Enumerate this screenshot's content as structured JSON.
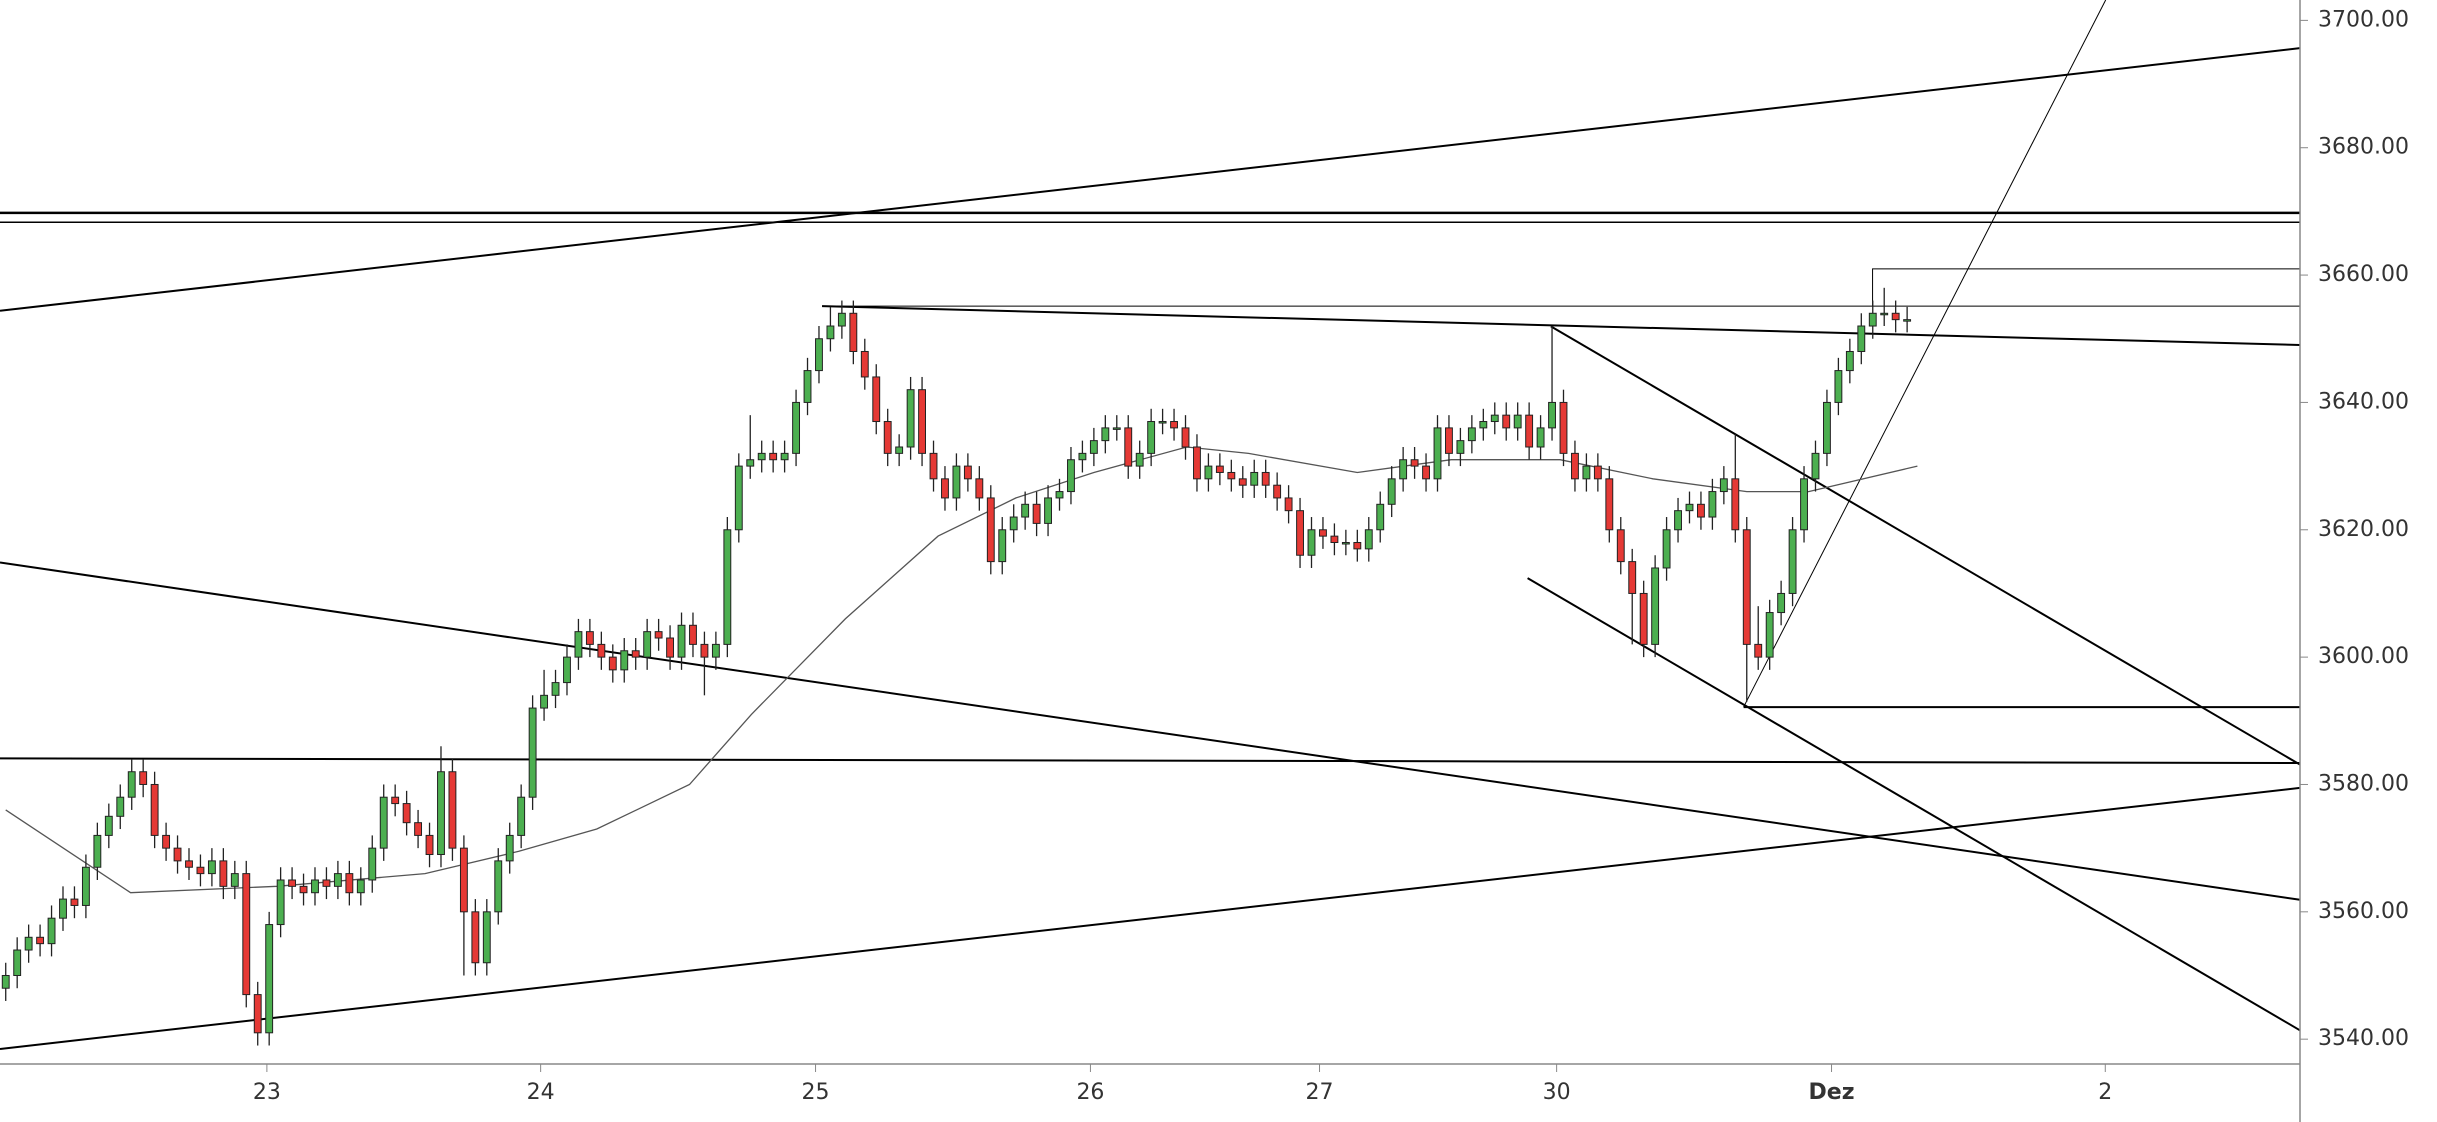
{
  "chart_data": {
    "type": "candlestick",
    "up_color": "#4caf50",
    "down_color": "#e53935",
    "outline_color": "#222222",
    "xlim": [
      -0.5,
      200.3
    ],
    "xticks": [
      {
        "value": 22.8,
        "label": "23"
      },
      {
        "value": 46.7,
        "label": "24"
      },
      {
        "value": 70.7,
        "label": "25"
      },
      {
        "value": 94.7,
        "label": "26"
      },
      {
        "value": 114.7,
        "label": "27"
      },
      {
        "value": 135.4,
        "label": "30"
      },
      {
        "value": 159.4,
        "label": "Dez"
      },
      {
        "value": 183.3,
        "label": "2"
      }
    ],
    "ylim": [
      3536.1,
      3703.2
    ],
    "yticks": [
      {
        "value": 3540,
        "label": "3540.00"
      },
      {
        "value": 3560,
        "label": "3560.00"
      },
      {
        "value": 3580,
        "label": "3580.00"
      },
      {
        "value": 3600,
        "label": "3600.00"
      },
      {
        "value": 3620,
        "label": "3620.00"
      },
      {
        "value": 3640,
        "label": "3640.00"
      },
      {
        "value": 3660,
        "label": "3660.00"
      },
      {
        "value": 3680,
        "label": "3680.00"
      },
      {
        "value": 3700,
        "label": "3700.00"
      }
    ],
    "ohlc": [
      [
        3548,
        3552,
        3546,
        3550
      ],
      [
        3550,
        3556,
        3548,
        3554
      ],
      [
        3554,
        3558,
        3552,
        3556
      ],
      [
        3556,
        3558,
        3553,
        3555
      ],
      [
        3555,
        3561,
        3553,
        3559
      ],
      [
        3559,
        3564,
        3557,
        3562
      ],
      [
        3562,
        3564,
        3559,
        3561
      ],
      [
        3561,
        3569,
        3559,
        3567
      ],
      [
        3567,
        3574,
        3565,
        3572
      ],
      [
        3572,
        3577,
        3570,
        3575
      ],
      [
        3575,
        3580,
        3573,
        3578
      ],
      [
        3578,
        3584,
        3576,
        3582
      ],
      [
        3582,
        3584,
        3578,
        3580
      ],
      [
        3580,
        3582,
        3570,
        3572
      ],
      [
        3572,
        3574,
        3568,
        3570
      ],
      [
        3570,
        3572,
        3566,
        3568
      ],
      [
        3568,
        3570,
        3565,
        3567
      ],
      [
        3567,
        3569,
        3564,
        3566
      ],
      [
        3566,
        3570,
        3564,
        3568
      ],
      [
        3568,
        3570,
        3562,
        3564
      ],
      [
        3564,
        3568,
        3562,
        3566
      ],
      [
        3566,
        3568,
        3545,
        3547
      ],
      [
        3547,
        3549,
        3539,
        3541
      ],
      [
        3541,
        3560,
        3539,
        3558
      ],
      [
        3558,
        3567,
        3556,
        3565
      ],
      [
        3565,
        3567,
        3562,
        3564
      ],
      [
        3564,
        3566,
        3561,
        3563
      ],
      [
        3563,
        3567,
        3561,
        3565
      ],
      [
        3565,
        3567,
        3562,
        3564
      ],
      [
        3564,
        3568,
        3562,
        3566
      ],
      [
        3566,
        3568,
        3561,
        3563
      ],
      [
        3563,
        3567,
        3561,
        3565
      ],
      [
        3565,
        3572,
        3563,
        3570
      ],
      [
        3570,
        3580,
        3568,
        3578
      ],
      [
        3578,
        3580,
        3575,
        3577
      ],
      [
        3577,
        3579,
        3572,
        3574
      ],
      [
        3574,
        3576,
        3570,
        3572
      ],
      [
        3572,
        3574,
        3567,
        3569
      ],
      [
        3569,
        3586,
        3567,
        3582
      ],
      [
        3582,
        3584,
        3568,
        3570
      ],
      [
        3570,
        3572,
        3550,
        3560
      ],
      [
        3560,
        3562,
        3550,
        3552
      ],
      [
        3552,
        3562,
        3550,
        3560
      ],
      [
        3560,
        3570,
        3558,
        3568
      ],
      [
        3568,
        3574,
        3566,
        3572
      ],
      [
        3572,
        3580,
        3570,
        3578
      ],
      [
        3578,
        3594,
        3576,
        3592
      ],
      [
        3592,
        3598,
        3590,
        3594
      ],
      [
        3594,
        3598,
        3592,
        3596
      ],
      [
        3596,
        3602,
        3594,
        3600
      ],
      [
        3600,
        3606,
        3598,
        3604
      ],
      [
        3604,
        3606,
        3600,
        3602
      ],
      [
        3602,
        3604,
        3598,
        3600
      ],
      [
        3600,
        3602,
        3596,
        3598
      ],
      [
        3598,
        3603,
        3596,
        3601
      ],
      [
        3601,
        3603,
        3598,
        3600
      ],
      [
        3600,
        3606,
        3598,
        3604
      ],
      [
        3604,
        3606,
        3601,
        3603
      ],
      [
        3603,
        3605,
        3598,
        3600
      ],
      [
        3600,
        3607,
        3598,
        3605
      ],
      [
        3605,
        3607,
        3600,
        3602
      ],
      [
        3602,
        3604,
        3594,
        3600
      ],
      [
        3600,
        3604,
        3598,
        3602
      ],
      [
        3602,
        3622,
        3600,
        3620
      ],
      [
        3620,
        3632,
        3618,
        3630
      ],
      [
        3630,
        3638,
        3628,
        3631
      ],
      [
        3631,
        3634,
        3629,
        3632
      ],
      [
        3632,
        3634,
        3629,
        3631
      ],
      [
        3631,
        3634,
        3629,
        3632
      ],
      [
        3632,
        3642,
        3630,
        3640
      ],
      [
        3640,
        3647,
        3638,
        3645
      ],
      [
        3645,
        3652,
        3643,
        3650
      ],
      [
        3650,
        3655,
        3648,
        3652
      ],
      [
        3652,
        3656,
        3650,
        3654
      ],
      [
        3654,
        3656,
        3646,
        3648
      ],
      [
        3648,
        3650,
        3642,
        3644
      ],
      [
        3644,
        3646,
        3635,
        3637
      ],
      [
        3637,
        3639,
        3630,
        3632
      ],
      [
        3632,
        3635,
        3630,
        3633
      ],
      [
        3633,
        3644,
        3631,
        3642
      ],
      [
        3642,
        3644,
        3630,
        3632
      ],
      [
        3632,
        3634,
        3626,
        3628
      ],
      [
        3628,
        3630,
        3623,
        3625
      ],
      [
        3625,
        3632,
        3623,
        3630
      ],
      [
        3630,
        3632,
        3626,
        3628
      ],
      [
        3628,
        3630,
        3623,
        3625
      ],
      [
        3625,
        3627,
        3613,
        3615
      ],
      [
        3615,
        3622,
        3613,
        3620
      ],
      [
        3620,
        3624,
        3618,
        3622
      ],
      [
        3622,
        3626,
        3620,
        3624
      ],
      [
        3624,
        3626,
        3619,
        3621
      ],
      [
        3621,
        3627,
        3619,
        3625
      ],
      [
        3625,
        3628,
        3623,
        3626
      ],
      [
        3626,
        3633,
        3624,
        3631
      ],
      [
        3631,
        3634,
        3629,
        3632
      ],
      [
        3632,
        3636,
        3630,
        3634
      ],
      [
        3634,
        3638,
        3632,
        3636
      ],
      [
        3636,
        3638,
        3634,
        3636
      ],
      [
        3636,
        3638,
        3628,
        3630
      ],
      [
        3630,
        3634,
        3628,
        3632
      ],
      [
        3632,
        3639,
        3630,
        3637
      ],
      [
        3637,
        3639,
        3635,
        3637
      ],
      [
        3637,
        3639,
        3634,
        3636
      ],
      [
        3636,
        3638,
        3631,
        3633
      ],
      [
        3633,
        3635,
        3626,
        3628
      ],
      [
        3628,
        3632,
        3626,
        3630
      ],
      [
        3630,
        3632,
        3627,
        3629
      ],
      [
        3629,
        3631,
        3626,
        3628
      ],
      [
        3628,
        3630,
        3625,
        3627
      ],
      [
        3627,
        3631,
        3625,
        3629
      ],
      [
        3629,
        3631,
        3625,
        3627
      ],
      [
        3627,
        3629,
        3623,
        3625
      ],
      [
        3625,
        3627,
        3621,
        3623
      ],
      [
        3623,
        3625,
        3614,
        3616
      ],
      [
        3616,
        3622,
        3614,
        3620
      ],
      [
        3620,
        3622,
        3617,
        3619
      ],
      [
        3619,
        3621,
        3616,
        3618
      ],
      [
        3618,
        3620,
        3616,
        3618
      ],
      [
        3618,
        3620,
        3615,
        3617
      ],
      [
        3617,
        3622,
        3615,
        3620
      ],
      [
        3620,
        3626,
        3618,
        3624
      ],
      [
        3624,
        3630,
        3622,
        3628
      ],
      [
        3628,
        3633,
        3626,
        3631
      ],
      [
        3631,
        3633,
        3628,
        3630
      ],
      [
        3630,
        3632,
        3626,
        3628
      ],
      [
        3628,
        3638,
        3626,
        3636
      ],
      [
        3636,
        3638,
        3630,
        3632
      ],
      [
        3632,
        3636,
        3630,
        3634
      ],
      [
        3634,
        3638,
        3632,
        3636
      ],
      [
        3636,
        3639,
        3634,
        3637
      ],
      [
        3637,
        3640,
        3635,
        3638
      ],
      [
        3638,
        3640,
        3634,
        3636
      ],
      [
        3636,
        3640,
        3634,
        3638
      ],
      [
        3638,
        3640,
        3631,
        3633
      ],
      [
        3633,
        3638,
        3631,
        3636
      ],
      [
        3636,
        3652,
        3634,
        3640
      ],
      [
        3640,
        3642,
        3630,
        3632
      ],
      [
        3632,
        3634,
        3626,
        3628
      ],
      [
        3628,
        3632,
        3626,
        3630
      ],
      [
        3630,
        3632,
        3626,
        3628
      ],
      [
        3628,
        3630,
        3618,
        3620
      ],
      [
        3620,
        3622,
        3613,
        3615
      ],
      [
        3615,
        3617,
        3602,
        3610
      ],
      [
        3610,
        3612,
        3600,
        3602
      ],
      [
        3602,
        3616,
        3600,
        3614
      ],
      [
        3614,
        3622,
        3612,
        3620
      ],
      [
        3620,
        3625,
        3618,
        3623
      ],
      [
        3623,
        3626,
        3621,
        3624
      ],
      [
        3624,
        3626,
        3620,
        3622
      ],
      [
        3622,
        3628,
        3620,
        3626
      ],
      [
        3626,
        3630,
        3624,
        3628
      ],
      [
        3628,
        3635,
        3618,
        3620
      ],
      [
        3620,
        3622,
        3593,
        3602
      ],
      [
        3602,
        3608,
        3598,
        3600
      ],
      [
        3600,
        3609,
        3598,
        3607
      ],
      [
        3607,
        3612,
        3605,
        3610
      ],
      [
        3610,
        3622,
        3608,
        3620
      ],
      [
        3620,
        3630,
        3618,
        3628
      ],
      [
        3628,
        3634,
        3626,
        3632
      ],
      [
        3632,
        3642,
        3630,
        3640
      ],
      [
        3640,
        3647,
        3638,
        3645
      ],
      [
        3645,
        3650,
        3643,
        3648
      ],
      [
        3648,
        3654,
        3646,
        3652
      ],
      [
        3652,
        3656,
        3650,
        3654
      ],
      [
        3654,
        3658,
        3652,
        3654
      ],
      [
        3654,
        3656,
        3651,
        3653
      ],
      [
        3653,
        3655,
        3651,
        3653
      ]
    ],
    "ma": {
      "color": "#555555",
      "x": [
        0,
        10.9,
        23.7,
        36.6,
        44.8,
        51.6,
        59.7,
        65.1,
        73.3,
        81.4,
        88.2,
        95,
        103.1,
        108.5,
        118,
        126.2,
        135.7,
        143.8,
        152,
        157.4,
        166.9
      ],
      "values": [
        3576,
        3563,
        3564,
        3566,
        3569.5,
        3573,
        3580,
        3591,
        3606,
        3619,
        3625,
        3629,
        3633,
        3632,
        3629,
        3631,
        3631,
        3628,
        3626,
        3626,
        3630
      ]
    }
  }
}
